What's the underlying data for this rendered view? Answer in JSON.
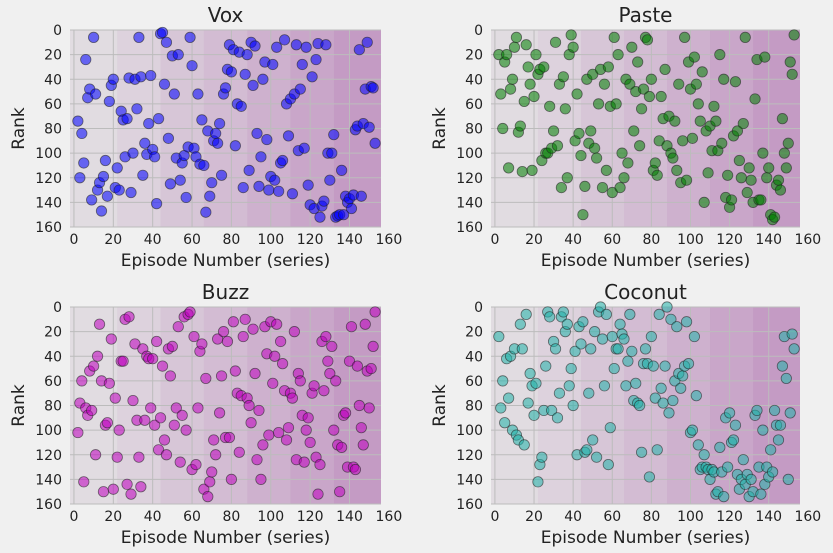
{
  "chart_data": [
    {
      "type": "scatter",
      "title": "Vox",
      "xlabel": "Episode Number (series)",
      "ylabel": "Rank",
      "xlim": [
        -2,
        156
      ],
      "ylim": [
        160,
        0
      ],
      "y_inverted": true,
      "xticks": [
        0,
        20,
        40,
        60,
        80,
        100,
        120,
        140,
        160
      ],
      "yticks": [
        0,
        20,
        40,
        60,
        80,
        100,
        120,
        140,
        160
      ],
      "grid": true,
      "background_bands": [
        22,
        44,
        66,
        88,
        110,
        132
      ],
      "band_color": "#9b3d9b",
      "color": "#0000ff",
      "x": [
        2,
        3,
        4,
        5,
        6,
        7,
        8,
        9,
        10,
        11,
        12,
        13,
        14,
        15,
        16,
        17,
        18,
        19,
        20,
        21,
        22,
        23,
        24,
        25,
        26,
        27,
        28,
        29,
        30,
        31,
        32,
        33,
        34,
        35,
        36,
        37,
        38,
        39,
        40,
        41,
        42,
        43,
        44,
        45,
        46,
        47,
        48,
        49,
        50,
        51,
        52,
        53,
        54,
        55,
        56,
        57,
        58,
        59,
        60,
        61,
        62,
        63,
        64,
        65,
        66,
        67,
        68,
        69,
        70,
        71,
        72,
        73,
        74,
        75,
        76,
        77,
        78,
        79,
        80,
        81,
        82,
        83,
        84,
        85,
        86,
        87,
        88,
        89,
        90,
        91,
        92,
        93,
        94,
        95,
        96,
        97,
        98,
        99,
        100,
        101,
        102,
        103,
        104,
        105,
        106,
        107,
        108,
        109,
        110,
        111,
        112,
        113,
        114,
        115,
        116,
        117,
        118,
        119,
        120,
        121,
        122,
        123,
        124,
        125,
        126,
        127,
        128,
        129,
        130,
        131,
        132,
        133,
        134,
        135,
        136,
        137,
        138,
        139,
        140,
        141,
        142,
        143,
        144,
        145,
        146,
        147,
        148,
        149,
        150,
        151,
        152,
        153
      ],
      "y": [
        74,
        120,
        84,
        108,
        24,
        55,
        48,
        138,
        6,
        52,
        130,
        124,
        147,
        119,
        106,
        135,
        58,
        45,
        40,
        128,
        112,
        130,
        66,
        73,
        103,
        72,
        39,
        132,
        100,
        40,
        64,
        6,
        38,
        118,
        92,
        101,
        76,
        37,
        97,
        103,
        141,
        72,
        3,
        2,
        44,
        10,
        88,
        125,
        21,
        52,
        104,
        20,
        122,
        108,
        102,
        136,
        95,
        6,
        29,
        96,
        103,
        52,
        109,
        73,
        110,
        148,
        82,
        135,
        124,
        90,
        84,
        92,
        76,
        118,
        52,
        47,
        32,
        12,
        34,
        16,
        94,
        60,
        18,
        62,
        128,
        36,
        20,
        114,
        10,
        45,
        13,
        84,
        127,
        103,
        40,
        26,
        89,
        130,
        119,
        28,
        122,
        14,
        131,
        108,
        106,
        8,
        60,
        86,
        56,
        133,
        52,
        12,
        98,
        48,
        28,
        96,
        14,
        126,
        142,
        38,
        145,
        24,
        11,
        152,
        143,
        139,
        12,
        100,
        122,
        100,
        85,
        152,
        151,
        150,
        114,
        150,
        135,
        140,
        137,
        145,
        134,
        81,
        78,
        16,
        135,
        76,
        48,
        10,
        79,
        46,
        47,
        92
      ]
    },
    {
      "type": "scatter",
      "title": "Paste",
      "xlabel": "Episode Number (series)",
      "ylabel": "Rank",
      "xlim": [
        -2,
        156
      ],
      "ylim": [
        160,
        0
      ],
      "y_inverted": true,
      "xticks": [
        0,
        20,
        40,
        60,
        80,
        100,
        120,
        140,
        160
      ],
      "yticks": [
        0,
        20,
        40,
        60,
        80,
        100,
        120,
        140,
        160
      ],
      "grid": true,
      "background_bands": [
        22,
        44,
        66,
        88,
        110,
        132
      ],
      "band_color": "#9b3d9b",
      "color": "#008000",
      "x": [
        2,
        3,
        4,
        5,
        6,
        7,
        8,
        9,
        10,
        11,
        12,
        13,
        14,
        15,
        16,
        17,
        18,
        19,
        20,
        21,
        22,
        23,
        24,
        25,
        26,
        27,
        28,
        29,
        30,
        31,
        32,
        33,
        34,
        35,
        36,
        37,
        38,
        39,
        40,
        41,
        42,
        43,
        44,
        45,
        46,
        47,
        48,
        49,
        50,
        51,
        52,
        53,
        54,
        55,
        56,
        57,
        58,
        59,
        60,
        61,
        62,
        63,
        64,
        65,
        66,
        67,
        68,
        69,
        70,
        71,
        72,
        73,
        74,
        75,
        76,
        77,
        78,
        79,
        80,
        81,
        82,
        83,
        84,
        85,
        86,
        87,
        88,
        89,
        90,
        91,
        92,
        93,
        94,
        95,
        96,
        97,
        98,
        99,
        100,
        101,
        102,
        103,
        104,
        105,
        106,
        107,
        108,
        109,
        110,
        111,
        112,
        113,
        114,
        115,
        116,
        117,
        118,
        119,
        120,
        121,
        122,
        123,
        124,
        125,
        126,
        127,
        128,
        129,
        130,
        131,
        132,
        133,
        134,
        135,
        136,
        137,
        138,
        139,
        140,
        141,
        142,
        143,
        144,
        145,
        146,
        147,
        148,
        149,
        150,
        151,
        152,
        153
      ],
      "y": [
        20,
        52,
        80,
        26,
        20,
        112,
        48,
        40,
        14,
        6,
        83,
        78,
        115,
        58,
        12,
        30,
        44,
        114,
        54,
        20,
        36,
        32,
        106,
        30,
        100,
        100,
        62,
        96,
        82,
        10,
        94,
        44,
        128,
        38,
        64,
        120,
        20,
        4,
        14,
        90,
        52,
        84,
        102,
        150,
        127,
        40,
        92,
        82,
        36,
        96,
        104,
        60,
        32,
        128,
        44,
        114,
        30,
        62,
        132,
        6,
        60,
        20,
        128,
        100,
        120,
        40,
        108,
        44,
        14,
        82,
        50,
        26,
        94,
        64,
        48,
        6,
        8,
        54,
        40,
        114,
        108,
        118,
        90,
        54,
        72,
        32,
        94,
        70,
        100,
        104,
        74,
        114,
        44,
        124,
        90,
        6,
        122,
        26,
        48,
        88,
        22,
        44,
        60,
        74,
        34,
        140,
        82,
        116,
        78,
        98,
        62,
        74,
        98,
        20,
        92,
        40,
        136,
        118,
        144,
        138,
        86,
        42,
        82,
        106,
        120,
        76,
        6,
        132,
        112,
        122,
        140,
        56,
        24,
        138,
        138,
        100,
        22,
        120,
        112,
        150,
        154,
        152,
        126,
        122,
        130,
        72,
        100,
        112,
        92,
        26,
        36,
        4
      ]
    },
    {
      "type": "scatter",
      "title": "Buzz",
      "xlabel": "Episode Number (series)",
      "ylabel": "Rank",
      "xlim": [
        -2,
        156
      ],
      "ylim": [
        160,
        0
      ],
      "y_inverted": true,
      "xticks": [
        0,
        20,
        40,
        60,
        80,
        100,
        120,
        140,
        160
      ],
      "yticks": [
        0,
        20,
        40,
        60,
        80,
        100,
        120,
        140,
        160
      ],
      "grid": true,
      "background_bands": [
        22,
        44,
        66,
        88,
        110,
        132
      ],
      "band_color": "#9b3d9b",
      "color": "#c000c0",
      "x": [
        2,
        3,
        4,
        5,
        6,
        7,
        8,
        9,
        10,
        11,
        12,
        13,
        14,
        15,
        16,
        17,
        18,
        19,
        20,
        21,
        22,
        23,
        24,
        25,
        26,
        27,
        28,
        29,
        30,
        31,
        32,
        33,
        34,
        35,
        36,
        37,
        38,
        39,
        40,
        41,
        42,
        43,
        44,
        45,
        46,
        47,
        48,
        49,
        50,
        51,
        52,
        53,
        54,
        55,
        56,
        57,
        58,
        59,
        60,
        61,
        62,
        63,
        64,
        65,
        66,
        67,
        68,
        69,
        70,
        71,
        72,
        73,
        74,
        75,
        76,
        77,
        78,
        79,
        80,
        81,
        82,
        83,
        84,
        85,
        86,
        87,
        88,
        89,
        90,
        91,
        92,
        93,
        94,
        95,
        96,
        97,
        98,
        99,
        100,
        101,
        102,
        103,
        104,
        105,
        106,
        107,
        108,
        109,
        110,
        111,
        112,
        113,
        114,
        115,
        116,
        117,
        118,
        119,
        120,
        121,
        122,
        123,
        124,
        125,
        126,
        127,
        128,
        129,
        130,
        131,
        132,
        133,
        134,
        135,
        136,
        137,
        138,
        139,
        140,
        141,
        142,
        143,
        144,
        145,
        146,
        147,
        148,
        149,
        150,
        151,
        152,
        153
      ],
      "y": [
        102,
        78,
        60,
        142,
        82,
        88,
        52,
        84,
        48,
        120,
        40,
        14,
        60,
        150,
        96,
        94,
        62,
        26,
        148,
        74,
        122,
        100,
        44,
        44,
        10,
        144,
        8,
        152,
        76,
        30,
        92,
        122,
        146,
        34,
        92,
        40,
        42,
        82,
        42,
        96,
        28,
        116,
        90,
        48,
        108,
        120,
        34,
        56,
        32,
        96,
        82,
        16,
        126,
        88,
        8,
        100,
        6,
        4,
        132,
        24,
        128,
        82,
        36,
        30,
        148,
        58,
        154,
        142,
        134,
        108,
        120,
        26,
        86,
        56,
        20,
        106,
        28,
        106,
        140,
        12,
        52,
        70,
        118,
        72,
        24,
        10,
        74,
        80,
        94,
        18,
        54,
        124,
        84,
        140,
        112,
        16,
        38,
        104,
        12,
        62,
        40,
        14,
        102,
        28,
        46,
        68,
        108,
        98,
        70,
        74,
        20,
        124,
        54,
        60,
        88,
        126,
        100,
        90,
        110,
        70,
        64,
        122,
        152,
        128,
        28,
        68,
        24,
        44,
        54,
        32,
        100,
        60,
        112,
        150,
        114,
        88,
        86,
        130,
        44,
        16,
        130,
        132,
        48,
        80,
        98,
        112,
        14,
        52,
        82,
        50,
        32,
        4
      ]
    },
    {
      "type": "scatter",
      "title": "Coconut",
      "xlabel": "Episode Number (series)",
      "ylabel": "Rank",
      "xlim": [
        -2,
        156
      ],
      "ylim": [
        160,
        0
      ],
      "y_inverted": true,
      "xticks": [
        0,
        20,
        40,
        60,
        80,
        100,
        120,
        140,
        160
      ],
      "yticks": [
        0,
        20,
        40,
        60,
        80,
        100,
        120,
        140,
        160
      ],
      "grid": true,
      "background_bands": [
        22,
        44,
        66,
        88,
        110,
        132
      ],
      "band_color": "#9b3d9b",
      "color": "#20b2aa",
      "x": [
        2,
        3,
        4,
        5,
        6,
        7,
        8,
        9,
        10,
        11,
        12,
        13,
        14,
        15,
        16,
        17,
        18,
        19,
        20,
        21,
        22,
        23,
        24,
        25,
        26,
        27,
        28,
        29,
        30,
        31,
        32,
        33,
        34,
        35,
        36,
        37,
        38,
        39,
        40,
        41,
        42,
        43,
        44,
        45,
        46,
        47,
        48,
        49,
        50,
        51,
        52,
        53,
        54,
        55,
        56,
        57,
        58,
        59,
        60,
        61,
        62,
        63,
        64,
        65,
        66,
        67,
        68,
        69,
        70,
        71,
        72,
        73,
        74,
        75,
        76,
        77,
        78,
        79,
        80,
        81,
        82,
        83,
        84,
        85,
        86,
        87,
        88,
        89,
        90,
        91,
        92,
        93,
        94,
        95,
        96,
        97,
        98,
        99,
        100,
        101,
        102,
        103,
        104,
        105,
        106,
        107,
        108,
        109,
        110,
        111,
        112,
        113,
        114,
        115,
        116,
        117,
        118,
        119,
        120,
        121,
        122,
        123,
        124,
        125,
        126,
        127,
        128,
        129,
        130,
        131,
        132,
        133,
        134,
        135,
        136,
        137,
        138,
        139,
        140,
        141,
        142,
        143,
        144,
        145,
        146,
        147,
        148,
        149,
        150,
        151,
        152,
        153
      ],
      "y": [
        24,
        82,
        60,
        94,
        42,
        74,
        40,
        100,
        34,
        104,
        108,
        14,
        34,
        112,
        6,
        78,
        54,
        64,
        88,
        62,
        142,
        128,
        122,
        84,
        48,
        4,
        8,
        84,
        28,
        34,
        90,
        70,
        8,
        4,
        20,
        14,
        64,
        50,
        80,
        36,
        120,
        16,
        30,
        12,
        118,
        116,
        70,
        34,
        108,
        20,
        122,
        4,
        0,
        26,
        64,
        6,
        128,
        98,
        24,
        50,
        34,
        34,
        14,
        22,
        26,
        64,
        44,
        6,
        36,
        76,
        62,
        78,
        80,
        118,
        46,
        34,
        46,
        138,
        24,
        48,
        74,
        116,
        6,
        66,
        78,
        48,
        0,
        86,
        10,
        76,
        60,
        16,
        54,
        66,
        56,
        48,
        12,
        46,
        102,
        100,
        24,
        72,
        112,
        132,
        130,
        120,
        130,
        132,
        140,
        132,
        134,
        152,
        150,
        114,
        134,
        154,
        90,
        130,
        86,
        110,
        108,
        96,
        136,
        148,
        140,
        124,
        144,
        136,
        154,
        140,
        150,
        88,
        84,
        130,
        152,
        100,
        144,
        130,
        138,
        116,
        134,
        84,
        96,
        108,
        96,
        48,
        24,
        58,
        140,
        86,
        22,
        34
      ]
    }
  ]
}
